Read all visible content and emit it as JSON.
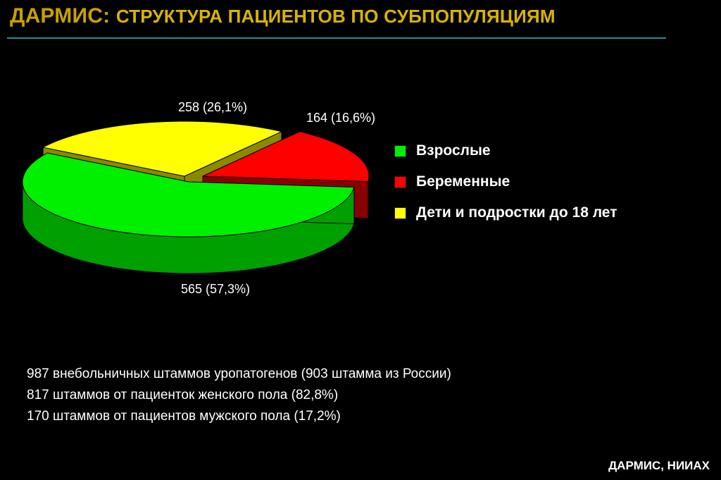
{
  "header": {
    "title_prefix": "ДАРМИС:",
    "title_main": "СТРУКТУРА ПАЦИЕНТОВ ПО СУБПОПУЛЯЦИЯМ"
  },
  "chart_data": {
    "type": "pie",
    "three_d": true,
    "legend_position": "right",
    "slices": [
      {
        "label": "Взрослые",
        "value": 565,
        "percent_label": "565 (57,3%)",
        "color": "#00f000",
        "side_color": "#00a000"
      },
      {
        "label": "Беременные",
        "value": 164,
        "percent_label": "164 (16,6%)",
        "color": "#ff0000",
        "side_color": "#8a0000"
      },
      {
        "label": "Дети и подростки до 18 лет",
        "value": 258,
        "percent_label": "258 (26,1%)",
        "color": "#ffff00",
        "side_color": "#8a8a00"
      }
    ]
  },
  "notes": [
    "987 внебольничных штаммов уропатогенов (903 штамма из России)",
    "817 штаммов от пациенток женского пола (82,8%)",
    "170 штаммов от пациентов мужского пола (17,2%)"
  ],
  "footer": "ДАРМИС, НИИАХ"
}
